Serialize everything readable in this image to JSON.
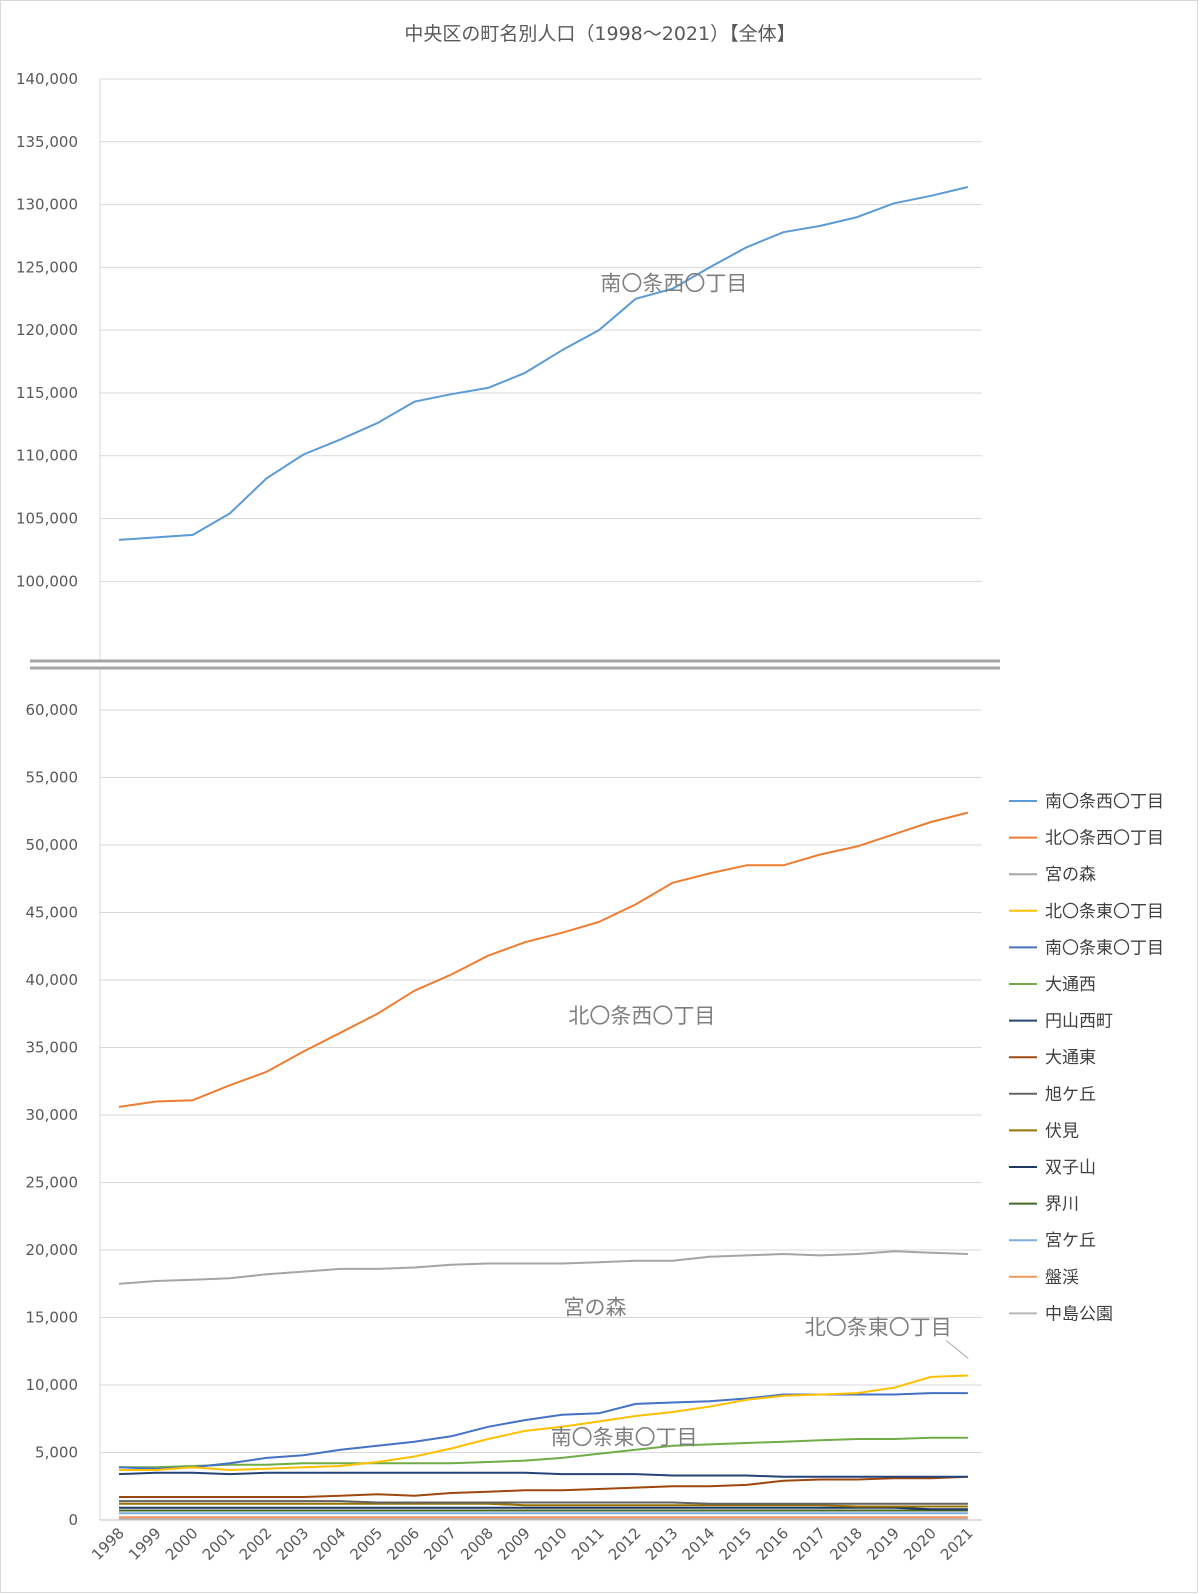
{
  "chart_data": {
    "type": "line",
    "title": "中央区の町名別人口（1998～2021）【全体】",
    "xlabel": "",
    "ylabel": "",
    "x": [
      "1998",
      "1999",
      "2000",
      "2001",
      "2002",
      "2003",
      "2004",
      "2005",
      "2006",
      "2007",
      "2008",
      "2009",
      "2010",
      "2011",
      "2012",
      "2013",
      "2014",
      "2015",
      "2016",
      "2017",
      "2018",
      "2019",
      "2020",
      "2021"
    ],
    "axis_break": true,
    "upper_panel": {
      "ylim": [
        97000,
        140000
      ],
      "ticks": [
        "100,000",
        "105,000",
        "110,000",
        "115,000",
        "120,000",
        "125,000",
        "130,000",
        "135,000",
        "140,000"
      ],
      "tick_values": [
        100000,
        105000,
        110000,
        115000,
        120000,
        125000,
        130000,
        135000,
        140000
      ]
    },
    "lower_panel": {
      "ylim": [
        0,
        60000
      ],
      "ticks": [
        "0",
        "5,000",
        "10,000",
        "15,000",
        "20,000",
        "25,000",
        "30,000",
        "35,000",
        "40,000",
        "45,000",
        "50,000",
        "55,000",
        "60,000"
      ],
      "tick_values": [
        0,
        5000,
        10000,
        15000,
        20000,
        25000,
        30000,
        35000,
        40000,
        45000,
        50000,
        55000,
        60000
      ]
    },
    "grid": true,
    "legend_position": "right",
    "series": [
      {
        "name": "南〇条西〇丁目",
        "color": "#5b9bd5",
        "values": [
          103300,
          103500,
          103700,
          105400,
          108200,
          110100,
          111300,
          112600,
          114300,
          114900,
          115400,
          116600,
          118400,
          120000,
          122500,
          123300,
          125000,
          126600,
          127800,
          128300,
          129000,
          130100,
          130700,
          131400
        ]
      },
      {
        "name": "北〇条西〇丁目",
        "color": "#ed7d31",
        "values": [
          30600,
          31000,
          31100,
          32200,
          33200,
          34700,
          36100,
          37500,
          39200,
          40400,
          41800,
          42800,
          43500,
          44300,
          45600,
          47200,
          47900,
          48500,
          48500,
          49300,
          49900,
          50800,
          51700,
          52400
        ]
      },
      {
        "name": "宮の森",
        "color": "#a5a5a5",
        "values": [
          17500,
          17700,
          17800,
          17900,
          18200,
          18400,
          18600,
          18600,
          18700,
          18900,
          19000,
          19000,
          19000,
          19100,
          19200,
          19200,
          19500,
          19600,
          19700,
          19600,
          19700,
          19900,
          19800,
          19700
        ]
      },
      {
        "name": "北〇条東〇丁目",
        "color": "#ffc000",
        "values": [
          3700,
          3700,
          3900,
          3700,
          3800,
          3900,
          4000,
          4300,
          4700,
          5300,
          6000,
          6600,
          6900,
          7300,
          7700,
          8000,
          8400,
          8900,
          9200,
          9300,
          9400,
          9800,
          10600,
          10700
        ]
      },
      {
        "name": "南〇条東〇丁目",
        "color": "#4472c4",
        "values": [
          3900,
          3800,
          3900,
          4200,
          4600,
          4800,
          5200,
          5500,
          5800,
          6200,
          6900,
          7400,
          7800,
          7900,
          8600,
          8700,
          8800,
          9000,
          9300,
          9300,
          9300,
          9300,
          9400,
          9400
        ]
      },
      {
        "name": "大通西",
        "color": "#70ad47",
        "values": [
          3900,
          3900,
          4000,
          4100,
          4100,
          4200,
          4200,
          4200,
          4200,
          4200,
          4300,
          4400,
          4600,
          4900,
          5200,
          5500,
          5600,
          5700,
          5800,
          5900,
          6000,
          6000,
          6100,
          6100
        ]
      },
      {
        "name": "円山西町",
        "color": "#264478",
        "values": [
          3400,
          3500,
          3500,
          3400,
          3500,
          3500,
          3500,
          3500,
          3500,
          3500,
          3500,
          3500,
          3400,
          3400,
          3400,
          3300,
          3300,
          3300,
          3200,
          3200,
          3200,
          3200,
          3200,
          3200
        ]
      },
      {
        "name": "大通東",
        "color": "#9e480e",
        "values": [
          1700,
          1700,
          1700,
          1700,
          1700,
          1700,
          1800,
          1900,
          1800,
          2000,
          2100,
          2200,
          2200,
          2300,
          2400,
          2500,
          2500,
          2600,
          2900,
          3000,
          3000,
          3100,
          3100,
          3200
        ]
      },
      {
        "name": "旭ケ丘",
        "color": "#636363",
        "values": [
          1400,
          1400,
          1400,
          1400,
          1400,
          1400,
          1400,
          1300,
          1300,
          1300,
          1300,
          1300,
          1300,
          1300,
          1300,
          1300,
          1200,
          1200,
          1200,
          1200,
          1200,
          1200,
          1200,
          1200
        ]
      },
      {
        "name": "伏見",
        "color": "#997300",
        "values": [
          1200,
          1200,
          1200,
          1200,
          1200,
          1200,
          1200,
          1200,
          1200,
          1200,
          1200,
          1100,
          1100,
          1100,
          1100,
          1100,
          1100,
          1100,
          1100,
          1100,
          1000,
          1000,
          1000,
          1000
        ]
      },
      {
        "name": "双子山",
        "color": "#203864",
        "values": [
          900,
          900,
          900,
          900,
          900,
          900,
          900,
          900,
          900,
          900,
          900,
          900,
          900,
          900,
          900,
          900,
          900,
          900,
          900,
          900,
          900,
          900,
          800,
          800
        ]
      },
      {
        "name": "界川",
        "color": "#43682b",
        "values": [
          700,
          700,
          700,
          700,
          700,
          700,
          700,
          700,
          700,
          700,
          700,
          700,
          700,
          700,
          700,
          700,
          700,
          700,
          700,
          700,
          700,
          700,
          700,
          700
        ]
      },
      {
        "name": "宮ケ丘",
        "color": "#7cafdd",
        "values": [
          500,
          500,
          500,
          500,
          500,
          500,
          500,
          500,
          500,
          500,
          500,
          500,
          500,
          500,
          500,
          500,
          500,
          500,
          500,
          500,
          500,
          500,
          500,
          500
        ]
      },
      {
        "name": "盤渓",
        "color": "#f1975a",
        "values": [
          200,
          200,
          200,
          200,
          200,
          200,
          200,
          200,
          200,
          200,
          200,
          200,
          200,
          200,
          200,
          200,
          200,
          200,
          200,
          200,
          200,
          200,
          200,
          200
        ]
      },
      {
        "name": "中島公園",
        "color": "#b7b7b7",
        "values": [
          100,
          100,
          100,
          100,
          100,
          100,
          100,
          100,
          100,
          100,
          100,
          100,
          100,
          100,
          100,
          100,
          100,
          100,
          100,
          100,
          100,
          100,
          100,
          100
        ]
      }
    ],
    "annotations": [
      {
        "text": "南〇条西〇丁目",
        "series": 0,
        "x_index": 12,
        "offset": 20
      },
      {
        "text": "北〇条西〇丁目",
        "series": 1,
        "x_index": 12,
        "offset": 30
      },
      {
        "text": "宮の森",
        "series": 2,
        "x_index": 11,
        "offset": 24
      },
      {
        "text": "南〇条東〇丁目",
        "series": 4,
        "x_index": 9,
        "offset": 0
      },
      {
        "text": "北〇条東〇丁目",
        "series": 3,
        "x_index": 19,
        "offset": 0
      }
    ]
  }
}
